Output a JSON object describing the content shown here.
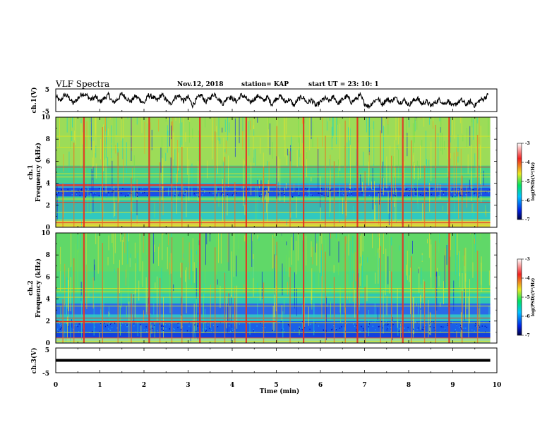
{
  "header": {
    "title": "VLF Spectra",
    "date": "Nov.12, 2018",
    "station": "station= KAP",
    "start": "start  UT =  23: 10: 1"
  },
  "chart_data": [
    {
      "id": "ch1-waveform",
      "type": "line",
      "ylabel": "ch.1(V)",
      "ylim": [
        -5,
        5
      ],
      "yticks": [
        "5",
        "-5"
      ],
      "xlim": [
        0,
        10
      ],
      "series": [
        {
          "x": [
            0,
            0.1,
            0.2,
            0.3,
            0.4,
            0.5,
            0.6,
            0.7,
            0.8,
            0.9,
            1.0,
            1.1,
            1.2,
            1.3,
            1.4,
            1.5,
            1.6,
            1.7,
            1.8,
            1.9,
            2.0,
            2.1,
            2.2,
            2.3,
            2.4,
            2.5,
            2.6,
            2.7,
            2.8,
            2.9,
            3.0,
            3.1,
            3.2,
            3.3,
            3.4,
            3.5,
            3.6,
            3.7,
            3.8,
            3.9,
            4.0,
            4.1,
            4.2,
            4.3,
            4.4,
            4.5,
            4.6,
            4.7,
            4.8,
            4.9,
            5.0,
            5.1,
            5.2,
            5.3,
            5.4,
            5.5,
            5.6,
            5.7,
            5.8,
            5.9,
            6.0,
            6.1,
            6.2,
            6.3,
            6.4,
            6.5,
            6.6,
            6.7,
            6.8,
            6.9,
            7.0,
            7.1,
            7.2,
            7.3,
            7.4,
            7.5,
            7.6,
            7.7,
            7.8,
            7.9,
            8.0,
            8.1,
            8.2,
            8.3,
            8.4,
            8.5,
            8.6,
            8.7,
            8.8,
            8.9,
            9.0,
            9.1,
            9.2,
            9.3,
            9.4,
            9.5,
            9.6,
            9.7,
            9.8
          ],
          "values": [
            1.8,
            -0.5,
            2.5,
            1.2,
            -1.5,
            0.8,
            3.0,
            2.2,
            0.2,
            1.6,
            -0.8,
            0.9,
            2.4,
            -1.2,
            0.4,
            2.8,
            1.0,
            -0.6,
            1.8,
            0.5,
            -1.4,
            2.2,
            1.4,
            -0.2,
            2.6,
            0.1,
            -1.8,
            1.2,
            2.0,
            -0.4,
            1.5,
            -2.2,
            0.6,
            2.4,
            -0.9,
            1.1,
            2.9,
            0.3,
            -1.6,
            1.7,
            0.8,
            -0.6,
            2.3,
            1.2,
            -1.1,
            0.6,
            2.1,
            -0.3,
            1.4,
            -1.9,
            0.9,
            1.8,
            -0.7,
            0.4,
            -2.4,
            0.6,
            1.5,
            -1.2,
            0.2,
            -2.6,
            -0.8,
            1.0,
            -0.4,
            1.6,
            -1.5,
            0.3,
            1.9,
            -0.9,
            0.5,
            2.2,
            -1.4,
            -2.8,
            -0.6,
            0.8,
            -1.8,
            0.4,
            -0.5,
            1.1,
            -1.1,
            0.2,
            -2.1,
            -0.3,
            0.9,
            -1.7,
            -0.4,
            -2.5,
            -1.0,
            0.3,
            -1.6,
            -0.2,
            -2.8,
            -1.2,
            0.1,
            -1.9,
            -0.6,
            -2.4,
            -0.2,
            0.6,
            2.4
          ]
        }
      ]
    },
    {
      "id": "ch1-spectrogram",
      "type": "heatmap",
      "ylabel": "ch.1\nFrequency (kHz)",
      "ylabel_lines": [
        "ch.1",
        "Frequency (kHz)"
      ],
      "ylim": [
        0,
        10
      ],
      "yticks": [
        "0",
        "2",
        "4",
        "6",
        "8",
        "10"
      ],
      "xlim": [
        0,
        10
      ],
      "colorbar": {
        "label": "log(PSD)(V²/Hz)",
        "range": [
          -7,
          -3
        ],
        "ticks": [
          "-3",
          "-4",
          "-5",
          "-6",
          "-7"
        ]
      },
      "vertical_bursts_min": [
        0.15,
        0.4,
        0.62,
        1.05,
        1.4,
        1.7,
        2.1,
        2.35,
        2.62,
        2.85,
        3.25,
        3.6,
        3.82,
        4.05,
        4.3,
        4.7,
        5.0,
        5.3,
        5.6,
        6.1,
        6.3,
        6.55,
        6.82,
        7.0,
        7.35,
        7.6,
        7.85,
        8.05,
        8.35,
        8.6,
        8.9,
        9.2,
        9.55
      ],
      "horizontal_lines_khz": [
        0.2,
        0.45,
        0.7,
        1.4,
        2.3,
        2.6,
        3.3,
        3.8,
        4.6,
        4.9,
        5.5,
        7.3,
        8.3
      ],
      "colors": {
        "high": "#e83020",
        "mid": "#d8e428",
        "low": "#28d8a0",
        "floor": "#0a2ad8"
      }
    },
    {
      "id": "ch2-spectrogram",
      "type": "heatmap",
      "ylabel": "ch.2\nFrequency (kHz)",
      "ylabel_lines": [
        "ch.2",
        "Frequency (kHz)"
      ],
      "ylim": [
        0,
        10
      ],
      "yticks": [
        "0",
        "2",
        "4",
        "6",
        "8",
        "10"
      ],
      "xlim": [
        0,
        10
      ],
      "colorbar": {
        "label": "log(PSD)(V²/Hz)",
        "range": [
          -7,
          -3
        ],
        "ticks": [
          "-3",
          "-4",
          "-5",
          "-6",
          "-7"
        ]
      },
      "vertical_bursts_min": [
        0.15,
        0.4,
        0.62,
        1.05,
        1.4,
        1.7,
        2.1,
        2.35,
        2.62,
        2.85,
        3.25,
        3.6,
        3.82,
        4.05,
        4.3,
        4.7,
        5.0,
        5.3,
        5.6,
        6.1,
        6.3,
        6.55,
        6.82,
        7.0,
        7.35,
        7.6,
        7.85,
        8.05,
        8.35,
        8.6,
        8.9,
        9.2,
        9.55
      ],
      "horizontal_lines_khz": [
        0.2,
        0.5,
        1.0,
        1.9,
        2.3,
        3.4,
        4.2,
        4.7,
        5.0
      ],
      "colors": {
        "high": "#e83020",
        "mid": "#d8e428",
        "low": "#28d8a0",
        "floor": "#0a2ad8"
      }
    },
    {
      "id": "ch3-waveform",
      "type": "line",
      "ylabel": "ch.3(V)",
      "ylim": [
        -5,
        5
      ],
      "yticks": [
        "5",
        "-5"
      ],
      "xlim": [
        0,
        10
      ],
      "series": [
        {
          "x": [
            0,
            9.85
          ],
          "values": [
            0,
            0
          ]
        }
      ]
    }
  ],
  "x_axis": {
    "label": "Time (min)",
    "ticks": [
      "0",
      "1",
      "2",
      "3",
      "4",
      "5",
      "6",
      "7",
      "8",
      "9",
      "10"
    ],
    "range": [
      0,
      10
    ]
  }
}
